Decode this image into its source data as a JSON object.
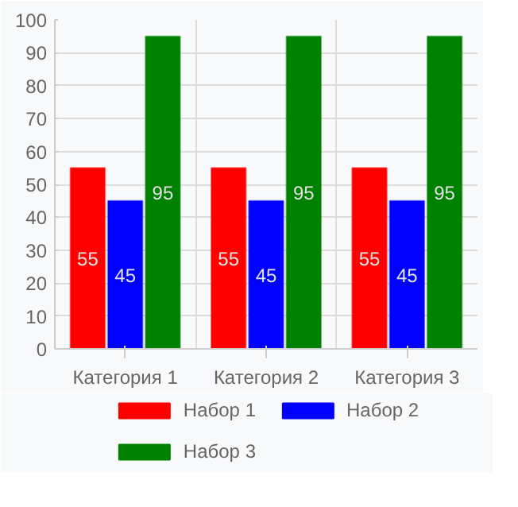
{
  "chart_data": {
    "type": "bar",
    "categories": [
      "Категория 1",
      "Категория 2",
      "Категория 3"
    ],
    "series": [
      {
        "name": "Набор 1",
        "color": "#ff0000",
        "values": [
          55,
          55,
          55
        ]
      },
      {
        "name": "Набор 2",
        "color": "#0000ff",
        "values": [
          45,
          45,
          45
        ]
      },
      {
        "name": "Набор 3",
        "color": "#008000",
        "values": [
          95,
          95,
          95
        ]
      }
    ],
    "ylim": [
      0,
      100
    ],
    "yticks": [
      0,
      10,
      20,
      30,
      40,
      50,
      60,
      70,
      80,
      90,
      100
    ],
    "grid": true,
    "legend": "bottom",
    "data_labels": true
  }
}
